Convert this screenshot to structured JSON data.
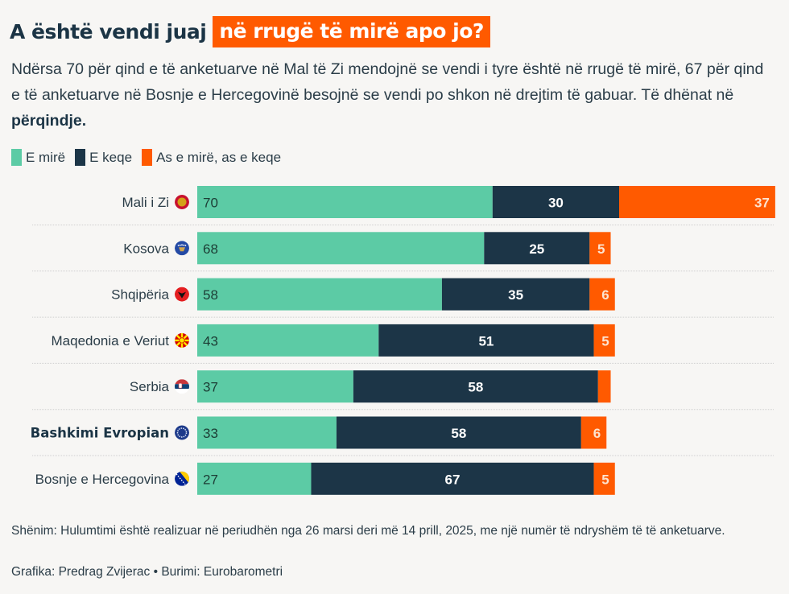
{
  "title": {
    "part1": "A është vendi juaj",
    "highlight": "në rrugë të mirë apo jo?"
  },
  "subtitle": {
    "text": "Ndërsa 70 për qind e të anketuarve në Mal të Zi mendojnë se vendi i tyre është në rrugë të mirë, 67 për qind e të anketuarve në Bosnje e Hercegovinë besojnë se vendi po shkon në drejtim të gabuar. Të dhënat në ",
    "bold": "përqindje."
  },
  "legend": [
    {
      "label": "E mirë",
      "color": "#5ccba5"
    },
    {
      "label": "E keqe",
      "color": "#1c3547"
    },
    {
      "label": "As e mirë, as e keqe",
      "color": "#ff5a00"
    }
  ],
  "chart_data": {
    "type": "bar",
    "orientation": "horizontal",
    "stacked": true,
    "title": "A është vendi juaj në rrugë të mirë apo jo?",
    "xlabel": "",
    "ylabel": "",
    "unit": "percent",
    "xlim": [
      0,
      137
    ],
    "grid": false,
    "legend_position": "top-left",
    "categories": [
      "Mali i Zi",
      "Kosova",
      "Shqipëria",
      "Maqedonia e Veriut",
      "Serbia",
      "Bashkimi Evropian",
      "Bosnje e Hercegovina"
    ],
    "category_icons": [
      "montenegro-flag-icon",
      "kosovo-flag-icon",
      "albania-flag-icon",
      "north-macedonia-flag-icon",
      "serbia-flag-icon",
      "eu-flag-icon",
      "bosnia-flag-icon"
    ],
    "bold_categories": [
      "Bashkimi Evropian"
    ],
    "series": [
      {
        "name": "E mirë",
        "color": "#5ccba5",
        "label_color": "#1c3d35",
        "values": [
          70,
          68,
          58,
          43,
          37,
          33,
          27
        ],
        "labels": [
          "70",
          "68",
          "58",
          "43",
          "37",
          "33",
          "27"
        ]
      },
      {
        "name": "E keqe",
        "color": "#1c3547",
        "label_color": "#ffffff",
        "values": [
          30,
          25,
          35,
          51,
          58,
          58,
          67
        ],
        "labels": [
          "30",
          "25",
          "35",
          "51",
          "58",
          "58",
          "67"
        ]
      },
      {
        "name": "As e mirë, as e keqe",
        "color": "#ff5a00",
        "label_color": "#fde3cf",
        "values": [
          37,
          5,
          6,
          5,
          3,
          6,
          5
        ],
        "labels": [
          "37",
          "5",
          "6",
          "5",
          "",
          "6",
          "5"
        ]
      }
    ]
  },
  "footnote": "Shënim: Hulumtimi është realizuar në periudhën nga 26 marsi deri më 14 prill, 2025, me një numër të ndryshëm të të anketuarve.",
  "credit": "Grafika: Predrag Zvijerac • Burimi: Eurobarometri"
}
